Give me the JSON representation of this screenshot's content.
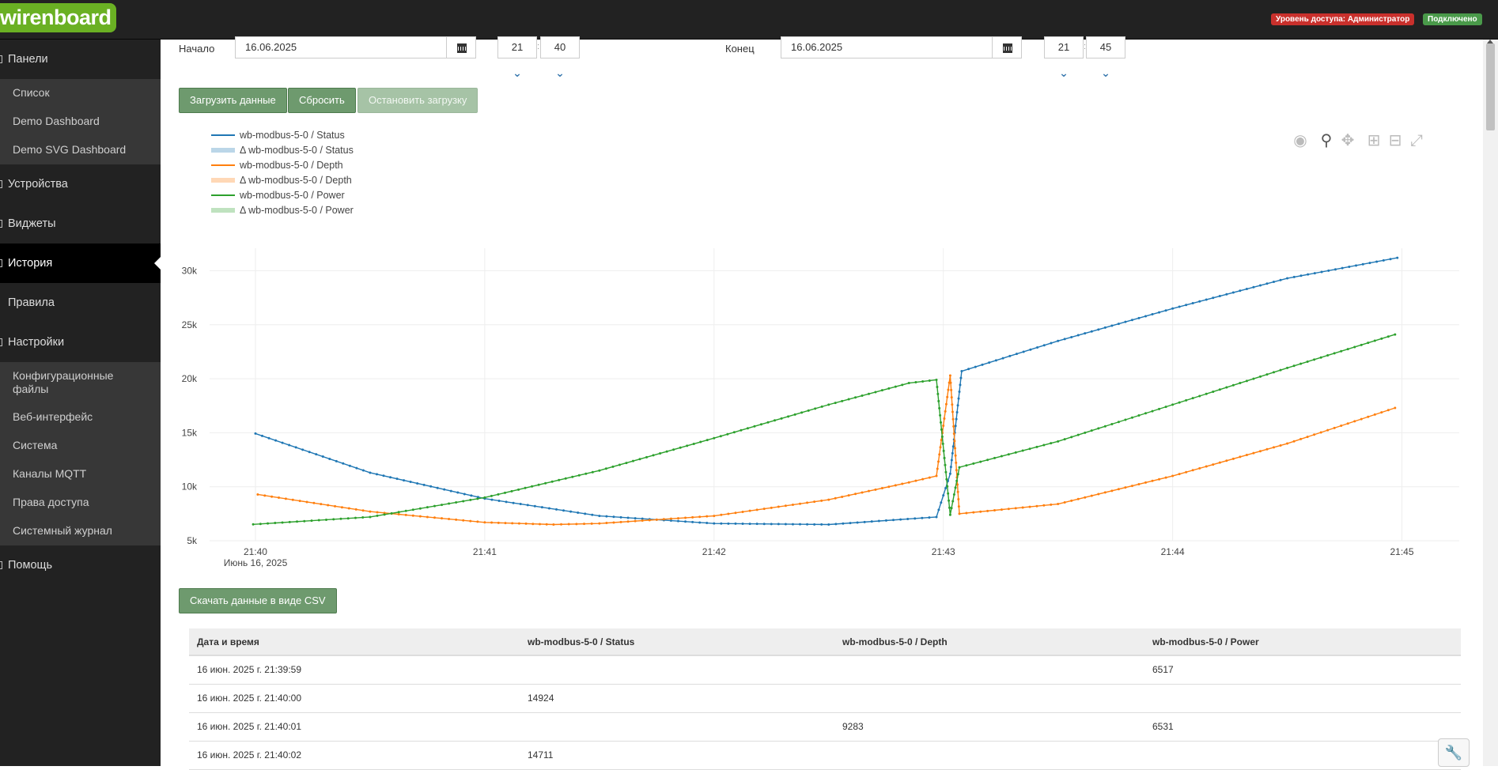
{
  "header": {
    "logo_text": "wirenboard",
    "access_badge": "Уровень доступа: Администратор",
    "connection_badge": "Подключено"
  },
  "sidebar": {
    "panels": "Панели",
    "panels_sub": [
      "Список",
      "Demo Dashboard",
      "Demo SVG Dashboard"
    ],
    "devices": "Устройства",
    "widgets": "Виджеты",
    "history": "История",
    "rules": "Правила",
    "settings": "Настройки",
    "settings_sub": [
      "Конфигурационные файлы",
      "Веб-интерфейс",
      "Система",
      "Каналы MQTT",
      "Права доступа",
      "Системный журнал"
    ],
    "help": "Помощь"
  },
  "filters": {
    "start_label": "Начало",
    "start_date": "16.06.2025",
    "start_hour": "21",
    "start_minute": "40",
    "end_label": "Конец",
    "end_date": "16.06.2025",
    "end_hour": "21",
    "end_minute": "45",
    "time_separator": ":"
  },
  "buttons": {
    "load": "Загрузить данные",
    "reset": "Сбросить",
    "stop": "Остановить загрузку",
    "csv": "Скачать данные в виде CSV"
  },
  "legend": [
    {
      "label": "wb-modbus-5-0 / Status",
      "color": "#1f77b4",
      "kind": "line"
    },
    {
      "label": "Δ wb-modbus-5-0 / Status",
      "color": "#1f77b4",
      "kind": "band"
    },
    {
      "label": "wb-modbus-5-0 / Depth",
      "color": "#ff7f0e",
      "kind": "line"
    },
    {
      "label": "Δ wb-modbus-5-0 / Depth",
      "color": "#ff7f0e",
      "kind": "band"
    },
    {
      "label": "wb-modbus-5-0 / Power",
      "color": "#2ca02c",
      "kind": "line"
    },
    {
      "label": "Δ wb-modbus-5-0 / Power",
      "color": "#2ca02c",
      "kind": "band"
    }
  ],
  "modebar_icons": [
    "camera-icon",
    "zoom-icon",
    "pan-icon",
    "zoom-in-icon",
    "zoom-out-icon",
    "autoscale-icon"
  ],
  "chart_data": {
    "type": "line",
    "x_ticks": [
      "21:40",
      "21:41",
      "21:42",
      "21:43",
      "21:44",
      "21:45"
    ],
    "x_sublabel": "Июнь 16, 2025",
    "y_ticks": [
      "5k",
      "10k",
      "15k",
      "20k",
      "25k",
      "30k"
    ],
    "y_tick_values": [
      5000,
      10000,
      15000,
      20000,
      25000,
      30000
    ],
    "xlim_minutes": [
      -0.2,
      5.25
    ],
    "ylim": [
      5000,
      31500
    ],
    "grid": true,
    "series": [
      {
        "name": "wb-modbus-5-0 / Status",
        "color": "#1f77b4",
        "x": [
          0,
          0.5,
          1,
          1.5,
          2,
          2.5,
          2.97,
          3.03,
          3.08,
          3.5,
          4,
          4.5,
          4.98
        ],
        "y": [
          14924,
          11300,
          8900,
          7300,
          6600,
          6500,
          7200,
          11200,
          20700,
          23500,
          26500,
          29300,
          31200
        ]
      },
      {
        "name": "wb-modbus-5-0 / Depth",
        "color": "#ff7f0e",
        "x": [
          0.01,
          0.5,
          1,
          1.3,
          1.5,
          2,
          2.5,
          2.85,
          2.97,
          3.03,
          3.07,
          3.5,
          4,
          4.5,
          4.97
        ],
        "y": [
          9283,
          7700,
          6700,
          6500,
          6600,
          7300,
          8800,
          10400,
          11000,
          20300,
          7500,
          8400,
          11000,
          14000,
          17300
        ]
      },
      {
        "name": "wb-modbus-5-0 / Power",
        "color": "#2ca02c",
        "x": [
          -0.01,
          0.5,
          1,
          1.5,
          2,
          2.5,
          2.85,
          2.97,
          3.03,
          3.07,
          3.5,
          4,
          4.5,
          4.97
        ],
        "y": [
          6517,
          7200,
          9000,
          11500,
          14500,
          17600,
          19600,
          19900,
          7400,
          11800,
          14200,
          17600,
          21000,
          24100
        ]
      }
    ]
  },
  "table": {
    "headers": [
      "Дата и время",
      "wb-modbus-5-0 / Status",
      "wb-modbus-5-0 / Depth",
      "wb-modbus-5-0 / Power"
    ],
    "rows": [
      [
        "16 июн. 2025 г. 21:39:59",
        "",
        "",
        "6517"
      ],
      [
        "16 июн. 2025 г. 21:40:00",
        "14924",
        "",
        ""
      ],
      [
        "16 июн. 2025 г. 21:40:01",
        "",
        "9283",
        "6531"
      ],
      [
        "16 июн. 2025 г. 21:40:02",
        "14711",
        "",
        ""
      ]
    ]
  }
}
